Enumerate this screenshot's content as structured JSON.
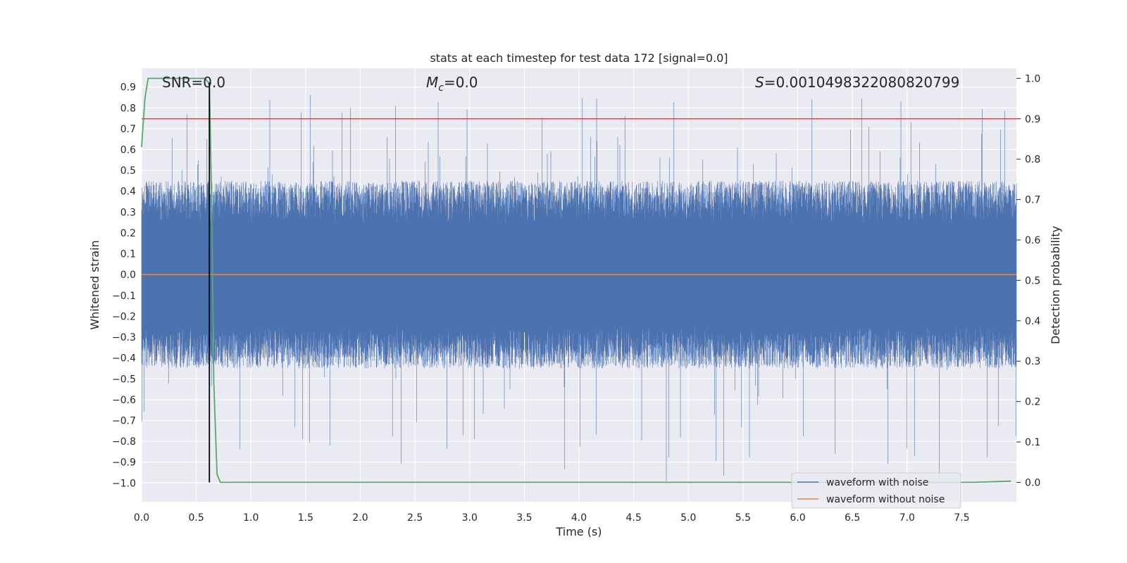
{
  "chart_data": {
    "type": "line",
    "title": "stats at each timestep for test data 172 [signal=0.0]",
    "xlabel": "Time (s)",
    "ylabel_left": "Whitened strain",
    "ylabel_right": "Detection probability",
    "xlim": [
      0.0,
      8.0
    ],
    "ylim_left": [
      -1.09,
      0.99
    ],
    "ylim_right": [
      -0.048,
      1.025
    ],
    "x_ticks": [
      "0.0",
      "0.5",
      "1.0",
      "1.5",
      "2.0",
      "2.5",
      "3.0",
      "3.5",
      "4.0",
      "4.5",
      "5.0",
      "5.5",
      "6.0",
      "6.5",
      "7.0",
      "7.5"
    ],
    "y_left_ticks": [
      "0.9",
      "0.8",
      "0.7",
      "0.6",
      "0.5",
      "0.4",
      "0.3",
      "0.2",
      "0.1",
      "0.0",
      "−0.1",
      "−0.2",
      "−0.3",
      "−0.4",
      "−0.5",
      "−0.6",
      "−0.7",
      "−0.8",
      "−0.9",
      "−1.0"
    ],
    "y_right_ticks": [
      "1.0",
      "0.9",
      "0.8",
      "0.7",
      "0.6",
      "0.5",
      "0.4",
      "0.3",
      "0.2",
      "0.1",
      "0.0"
    ],
    "annotations": {
      "snr": "SNR=0.0",
      "mc_symbol": "M",
      "mc_sub": "c",
      "mc_rest": "=0.0",
      "s_symbol": "S",
      "s_rest": "=0.0010498322080820799"
    },
    "threshold_right": 0.9,
    "detection_time_marker": 0.62,
    "series": [
      {
        "name": "waveform with noise",
        "color": "#4c72b0",
        "axis": "left",
        "approx_band": [
          -0.45,
          0.45
        ],
        "peaks_max": 0.87,
        "peaks_min": -1.0
      },
      {
        "name": "waveform without noise",
        "color": "#dd8452",
        "axis": "left",
        "constant": 0.0
      },
      {
        "name": "detection probability",
        "color": "#55a868",
        "axis": "right",
        "x": [
          0.0,
          0.03,
          0.06,
          0.1,
          0.15,
          0.3,
          0.5,
          0.58,
          0.61,
          0.62,
          0.64,
          0.66,
          0.69,
          0.72,
          0.78,
          1.0,
          3.0,
          5.0,
          7.0,
          7.6,
          7.95
        ],
        "y": [
          0.83,
          0.95,
          1.0,
          1.0,
          1.0,
          1.0,
          1.0,
          1.0,
          0.99,
          0.98,
          0.7,
          0.25,
          0.02,
          0.0,
          0.0,
          0.0,
          0.0,
          0.0,
          0.0,
          0.0,
          0.003
        ]
      },
      {
        "name": "threshold",
        "color": "#c44e52",
        "axis": "right",
        "constant": 0.9
      }
    ],
    "legend": {
      "position": "lower-right",
      "entries": [
        {
          "label": "waveform with noise",
          "color": "#4c72b0"
        },
        {
          "label": "waveform without noise",
          "color": "#dd8452"
        }
      ]
    }
  }
}
